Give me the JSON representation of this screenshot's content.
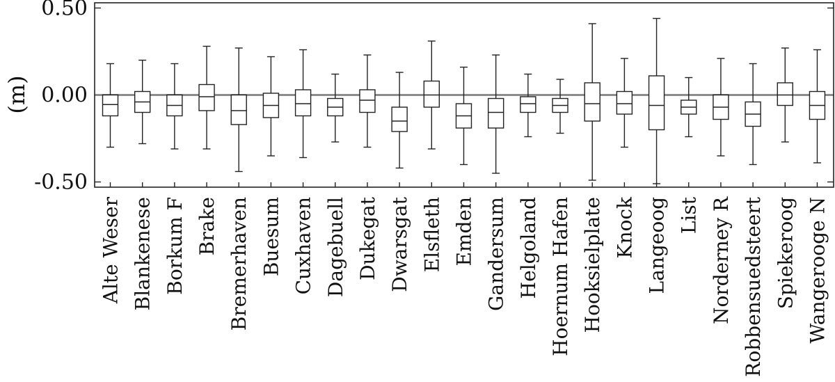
{
  "chart_data": {
    "type": "box",
    "ylabel": "(m)",
    "ylim": [
      -0.53,
      0.53
    ],
    "yticks": [
      {
        "value": 0.5,
        "label": "0.50"
      },
      {
        "value": 0.0,
        "label": "0.00"
      },
      {
        "value": -0.5,
        "label": "-0.50"
      }
    ],
    "reference_line": 0.0,
    "categories": [
      "Alte Weser",
      "Blankenese",
      "Borkum F",
      "Brake",
      "Bremerhaven",
      "Buesum",
      "Cuxhaven",
      "Dagebuell",
      "Dukegat",
      "Dwarsgat",
      "Elsfleth",
      "Emden",
      "Gandersum",
      "Helgoland",
      "Hoernum Hafen",
      "Hooksielplate",
      "Knock",
      "Langeoog",
      "List",
      "Norderney R",
      "Robbensuedsteert",
      "Spiekeroog",
      "Wangerooge N"
    ],
    "boxes": [
      {
        "min": -0.3,
        "q1": -0.12,
        "median": -0.055,
        "q3": 0.0,
        "max": 0.18
      },
      {
        "min": -0.28,
        "q1": -0.1,
        "median": -0.04,
        "q3": 0.02,
        "max": 0.2
      },
      {
        "min": -0.31,
        "q1": -0.12,
        "median": -0.06,
        "q3": 0.0,
        "max": 0.18
      },
      {
        "min": -0.31,
        "q1": -0.09,
        "median": -0.01,
        "q3": 0.06,
        "max": 0.28
      },
      {
        "min": -0.44,
        "q1": -0.17,
        "median": -0.09,
        "q3": 0.0,
        "max": 0.27
      },
      {
        "min": -0.35,
        "q1": -0.13,
        "median": -0.06,
        "q3": 0.01,
        "max": 0.22
      },
      {
        "min": -0.36,
        "q1": -0.12,
        "median": -0.05,
        "q3": 0.03,
        "max": 0.26
      },
      {
        "min": -0.27,
        "q1": -0.12,
        "median": -0.07,
        "q3": -0.02,
        "max": 0.12
      },
      {
        "min": -0.3,
        "q1": -0.1,
        "median": -0.03,
        "q3": 0.03,
        "max": 0.23
      },
      {
        "min": -0.42,
        "q1": -0.21,
        "median": -0.15,
        "q3": -0.07,
        "max": 0.13
      },
      {
        "min": -0.31,
        "q1": -0.07,
        "median": 0.0,
        "q3": 0.08,
        "max": 0.31
      },
      {
        "min": -0.4,
        "q1": -0.19,
        "median": -0.12,
        "q3": -0.05,
        "max": 0.16
      },
      {
        "min": -0.45,
        "q1": -0.19,
        "median": -0.1,
        "q3": -0.02,
        "max": 0.23
      },
      {
        "min": -0.24,
        "q1": -0.1,
        "median": -0.05,
        "q3": -0.01,
        "max": 0.12
      },
      {
        "min": -0.22,
        "q1": -0.1,
        "median": -0.06,
        "q3": -0.02,
        "max": 0.09
      },
      {
        "min": -0.49,
        "q1": -0.15,
        "median": -0.05,
        "q3": 0.07,
        "max": 0.41
      },
      {
        "min": -0.3,
        "q1": -0.11,
        "median": -0.05,
        "q3": 0.02,
        "max": 0.21
      },
      {
        "min": -0.51,
        "q1": -0.2,
        "median": -0.06,
        "q3": 0.11,
        "max": 0.44
      },
      {
        "min": -0.24,
        "q1": -0.11,
        "median": -0.07,
        "q3": -0.03,
        "max": 0.1
      },
      {
        "min": -0.35,
        "q1": -0.14,
        "median": -0.07,
        "q3": 0.0,
        "max": 0.21
      },
      {
        "min": -0.4,
        "q1": -0.18,
        "median": -0.11,
        "q3": -0.04,
        "max": 0.18
      },
      {
        "min": -0.27,
        "q1": -0.06,
        "median": 0.0,
        "q3": 0.07,
        "max": 0.27
      },
      {
        "min": -0.39,
        "q1": -0.14,
        "median": -0.06,
        "q3": 0.02,
        "max": 0.26
      }
    ]
  }
}
